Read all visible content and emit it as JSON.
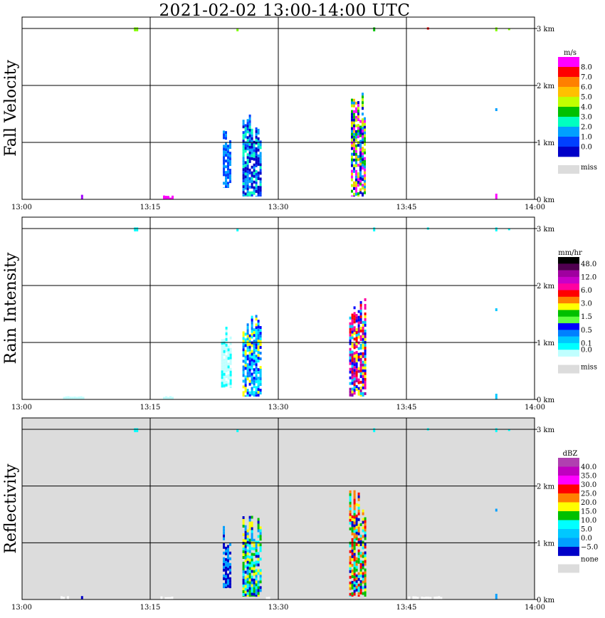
{
  "title": "2021-02-02   13:00-14:00 UTC",
  "x_ticks": [
    "13:00",
    "13:15",
    "13:30",
    "13:45",
    "14:00"
  ],
  "y_ticks": [
    "0 km",
    "1 km",
    "2 km",
    "3 km"
  ],
  "miss_label": "miss",
  "none_label": "none",
  "chart_data": [
    {
      "type": "heatmap",
      "ylabel": "Fall Velocity",
      "colorbar_unit": "m/s",
      "colorbar_labels": [
        "8.0",
        "7.0",
        "6.0",
        "5.0",
        "4.0",
        "3.0",
        "2.0",
        "1.0",
        "0.0"
      ],
      "colorbar_colors": [
        "#ff00ff",
        "#ff0000",
        "#ff8000",
        "#ffc000",
        "#c0ff00",
        "#00c000",
        "#00ffc0",
        "#00a0ff",
        "#0040ff",
        "#0000c8"
      ],
      "missing_color": "#dcdcdc",
      "background": "#ffffff",
      "x_range_minutes": [
        0,
        60
      ],
      "y_range_km": [
        0,
        3
      ],
      "echoes": [
        {
          "t0": 23.5,
          "t1": 24.5,
          "h0": 0.2,
          "h1": 1.3,
          "colors": [
            "#0040ff",
            "#00a0ff"
          ]
        },
        {
          "t0": 25.8,
          "t1": 28.0,
          "h0": 0.05,
          "h1": 1.55,
          "colors": [
            "#00ffc0",
            "#00a0ff",
            "#0040ff",
            "#0000c8"
          ]
        },
        {
          "t0": 38.5,
          "t1": 40.2,
          "h0": 0.05,
          "h1": 2.0,
          "colors": [
            "#00c000",
            "#c0ff00",
            "#ffc000",
            "#00a0ff",
            "#ff00ff",
            "#0000c8"
          ]
        },
        {
          "t0": 6.9,
          "t1": 7.1,
          "h0": 0.0,
          "h1": 0.08,
          "colors": [
            "#a000ff"
          ]
        },
        {
          "t0": 16.5,
          "t1": 17.6,
          "h0": 0.0,
          "h1": 0.08,
          "colors": [
            "#ff00ff"
          ]
        },
        {
          "t0": 55.4,
          "t1": 55.6,
          "h0": 0.0,
          "h1": 0.1,
          "colors": [
            "#ff00ff"
          ]
        },
        {
          "t0": 55.4,
          "t1": 55.6,
          "h0": 1.55,
          "h1": 1.6,
          "colors": [
            "#00a0ff"
          ]
        },
        {
          "t0": 13.1,
          "t1": 13.6,
          "h0": 2.95,
          "h1": 3.02,
          "colors": [
            "#80ff00"
          ]
        },
        {
          "t0": 25.1,
          "t1": 25.3,
          "h0": 2.95,
          "h1": 3.0,
          "colors": [
            "#80ff00"
          ]
        },
        {
          "t0": 41.1,
          "t1": 41.3,
          "h0": 2.95,
          "h1": 3.02,
          "colors": [
            "#00c000"
          ]
        },
        {
          "t0": 47.4,
          "t1": 47.6,
          "h0": 2.98,
          "h1": 3.02,
          "colors": [
            "#ff0000"
          ]
        },
        {
          "t0": 55.4,
          "t1": 55.6,
          "h0": 2.95,
          "h1": 3.02,
          "colors": [
            "#80ff00"
          ]
        },
        {
          "t0": 56.9,
          "t1": 57.1,
          "h0": 2.97,
          "h1": 3.0,
          "colors": [
            "#80ff00"
          ]
        }
      ]
    },
    {
      "type": "heatmap",
      "ylabel": "Rain Intensity",
      "colorbar_unit": "mm/hr",
      "colorbar_labels": [
        "48.0",
        "",
        "12.0",
        "",
        "6.0",
        "",
        "3.0",
        "",
        "1.5",
        "",
        "0.5",
        "",
        "0.1",
        "0.0"
      ],
      "colorbar_colors": [
        "#000000",
        "#500050",
        "#a000a0",
        "#c800c8",
        "#ff00a0",
        "#ff0000",
        "#ff8000",
        "#ffff00",
        "#00c000",
        "#60ff40",
        "#0000ff",
        "#0080ff",
        "#00c8ff",
        "#00ffff",
        "#c0ffff"
      ],
      "missing_color": "#dcdcdc",
      "background": "#ffffff",
      "x_range_minutes": [
        0,
        60
      ],
      "y_range_km": [
        0,
        3
      ],
      "echoes": [
        {
          "t0": 23.3,
          "t1": 24.5,
          "h0": 0.2,
          "h1": 1.3,
          "colors": [
            "#c0ffff",
            "#00ffff"
          ]
        },
        {
          "t0": 25.8,
          "t1": 28.0,
          "h0": 0.05,
          "h1": 1.55,
          "colors": [
            "#0000ff",
            "#0080ff",
            "#00ffff",
            "#00c8ff",
            "#ffff00"
          ]
        },
        {
          "t0": 38.3,
          "t1": 40.2,
          "h0": 0.05,
          "h1": 2.0,
          "colors": [
            "#ff00a0",
            "#ff0000",
            "#0000ff",
            "#00c8ff",
            "#a000a0",
            "#ffff00"
          ]
        },
        {
          "t0": 4.8,
          "t1": 7.1,
          "h0": 0.0,
          "h1": 0.06,
          "colors": [
            "#c0ffff"
          ]
        },
        {
          "t0": 16.5,
          "t1": 17.6,
          "h0": 0.0,
          "h1": 0.06,
          "colors": [
            "#c0ffff"
          ]
        },
        {
          "t0": 55.4,
          "t1": 55.6,
          "h0": 0.0,
          "h1": 0.1,
          "colors": [
            "#00c8ff"
          ]
        },
        {
          "t0": 55.4,
          "t1": 55.6,
          "h0": 1.55,
          "h1": 1.6,
          "colors": [
            "#00c8ff"
          ]
        },
        {
          "t0": 13.1,
          "t1": 13.6,
          "h0": 2.95,
          "h1": 3.02,
          "colors": [
            "#00ffff"
          ]
        },
        {
          "t0": 25.1,
          "t1": 25.3,
          "h0": 2.95,
          "h1": 3.0,
          "colors": [
            "#00ffff"
          ]
        },
        {
          "t0": 41.1,
          "t1": 41.3,
          "h0": 2.95,
          "h1": 3.02,
          "colors": [
            "#00ffff"
          ]
        },
        {
          "t0": 47.4,
          "t1": 47.6,
          "h0": 2.98,
          "h1": 3.02,
          "colors": [
            "#00ffff"
          ]
        },
        {
          "t0": 55.4,
          "t1": 55.6,
          "h0": 2.95,
          "h1": 3.02,
          "colors": [
            "#00ffff"
          ]
        },
        {
          "t0": 56.9,
          "t1": 57.1,
          "h0": 2.97,
          "h1": 3.0,
          "colors": [
            "#00ffff"
          ]
        }
      ]
    },
    {
      "type": "heatmap",
      "ylabel": "Reflectivity",
      "colorbar_unit": "dBZ",
      "colorbar_labels": [
        "40.0",
        "35.0",
        "30.0",
        "25.0",
        "20.0",
        "15.0",
        "10.0",
        "5.0",
        "0.0",
        "−5.0"
      ],
      "colorbar_colors": [
        "#b040b0",
        "#c000c0",
        "#ff00ff",
        "#ff0000",
        "#ff8000",
        "#ffff00",
        "#00c000",
        "#00ffff",
        "#00c8ff",
        "#00a0ff",
        "#0000c8"
      ],
      "missing_color": "#dcdcdc",
      "background": "#dcdcdc",
      "x_range_minutes": [
        0,
        60
      ],
      "y_range_km": [
        0,
        3
      ],
      "echoes": [
        {
          "t0": 23.5,
          "t1": 24.5,
          "h0": 0.2,
          "h1": 1.3,
          "colors": [
            "#0000c8",
            "#00a0ff"
          ]
        },
        {
          "t0": 25.8,
          "t1": 28.0,
          "h0": 0.05,
          "h1": 1.5,
          "colors": [
            "#00c000",
            "#ffff00",
            "#00ffff",
            "#0000c8",
            "#00a0ff"
          ]
        },
        {
          "t0": 38.3,
          "t1": 40.2,
          "h0": 0.05,
          "h1": 2.0,
          "colors": [
            "#ff0000",
            "#ff8000",
            "#ffff00",
            "#00c000",
            "#00ffff",
            "#0000c8"
          ]
        },
        {
          "t0": 4.5,
          "t1": 5.3,
          "h0": 0.0,
          "h1": 0.06,
          "colors": [
            "#ffffff"
          ]
        },
        {
          "t0": 6.9,
          "t1": 7.1,
          "h0": 0.0,
          "h1": 0.06,
          "colors": [
            "#0000c8"
          ]
        },
        {
          "t0": 16.2,
          "t1": 17.6,
          "h0": 0.0,
          "h1": 0.06,
          "colors": [
            "#ffffff"
          ]
        },
        {
          "t0": 28.3,
          "t1": 29.0,
          "h0": 0.0,
          "h1": 0.06,
          "colors": [
            "#ffffff"
          ]
        },
        {
          "t0": 45.2,
          "t1": 49.3,
          "h0": 0.0,
          "h1": 0.06,
          "colors": [
            "#ffffff"
          ]
        },
        {
          "t0": 55.4,
          "t1": 55.6,
          "h0": 0.0,
          "h1": 0.1,
          "colors": [
            "#00a0ff"
          ]
        },
        {
          "t0": 55.4,
          "t1": 55.6,
          "h0": 1.55,
          "h1": 1.6,
          "colors": [
            "#00a0ff"
          ]
        },
        {
          "t0": 13.1,
          "t1": 13.6,
          "h0": 2.95,
          "h1": 3.02,
          "colors": [
            "#00ffff"
          ]
        },
        {
          "t0": 25.1,
          "t1": 25.3,
          "h0": 2.95,
          "h1": 3.0,
          "colors": [
            "#00ffff"
          ]
        },
        {
          "t0": 41.1,
          "t1": 41.3,
          "h0": 2.95,
          "h1": 3.02,
          "colors": [
            "#00ffff"
          ]
        },
        {
          "t0": 47.4,
          "t1": 47.6,
          "h0": 2.98,
          "h1": 3.02,
          "colors": [
            "#00ffff"
          ]
        },
        {
          "t0": 55.4,
          "t1": 55.6,
          "h0": 2.95,
          "h1": 3.02,
          "colors": [
            "#00ffff"
          ]
        },
        {
          "t0": 56.9,
          "t1": 57.1,
          "h0": 2.97,
          "h1": 3.0,
          "colors": [
            "#00ffff"
          ]
        }
      ]
    }
  ]
}
